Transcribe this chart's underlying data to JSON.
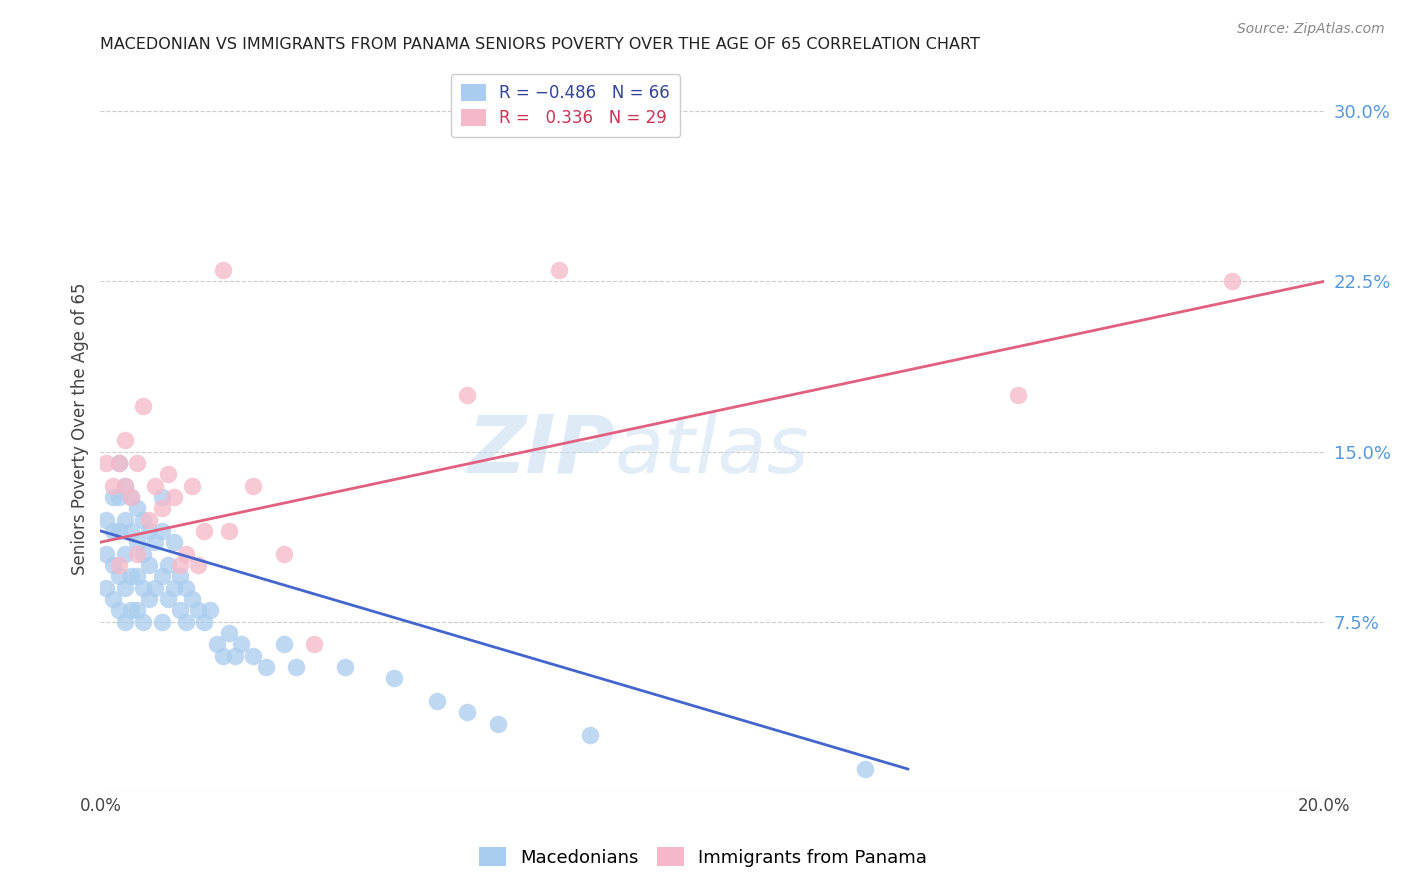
{
  "title": "MACEDONIAN VS IMMIGRANTS FROM PANAMA SENIORS POVERTY OVER THE AGE OF 65 CORRELATION CHART",
  "source": "Source: ZipAtlas.com",
  "ylabel": "Seniors Poverty Over the Age of 65",
  "xlim": [
    0.0,
    0.2
  ],
  "ylim": [
    0.0,
    0.32
  ],
  "yticks": [
    0.0,
    0.075,
    0.15,
    0.225,
    0.3
  ],
  "ytick_labels": [
    "",
    "7.5%",
    "15.0%",
    "22.5%",
    "30.0%"
  ],
  "xticks": [
    0.0,
    0.04,
    0.08,
    0.12,
    0.16,
    0.2
  ],
  "xtick_labels": [
    "0.0%",
    "",
    "",
    "",
    "",
    "20.0%"
  ],
  "blue_R": -0.486,
  "blue_N": 66,
  "pink_R": 0.336,
  "pink_N": 29,
  "blue_color": "#aaccee",
  "pink_color": "#f5b8c8",
  "blue_line_color": "#4466cc",
  "pink_line_color": "#e06080",
  "watermark_color": "#c8ddf0",
  "legend_label_blue": "Macedonians",
  "legend_label_pink": "Immigrants from Panama",
  "blue_x": [
    0.001,
    0.001,
    0.001,
    0.002,
    0.002,
    0.002,
    0.002,
    0.003,
    0.003,
    0.003,
    0.003,
    0.003,
    0.004,
    0.004,
    0.004,
    0.004,
    0.004,
    0.005,
    0.005,
    0.005,
    0.005,
    0.006,
    0.006,
    0.006,
    0.006,
    0.007,
    0.007,
    0.007,
    0.007,
    0.008,
    0.008,
    0.008,
    0.009,
    0.009,
    0.01,
    0.01,
    0.01,
    0.01,
    0.011,
    0.011,
    0.012,
    0.012,
    0.013,
    0.013,
    0.014,
    0.014,
    0.015,
    0.016,
    0.017,
    0.018,
    0.019,
    0.02,
    0.021,
    0.022,
    0.023,
    0.025,
    0.027,
    0.03,
    0.032,
    0.04,
    0.048,
    0.055,
    0.06,
    0.065,
    0.08,
    0.125
  ],
  "blue_y": [
    0.12,
    0.105,
    0.09,
    0.13,
    0.115,
    0.1,
    0.085,
    0.145,
    0.13,
    0.115,
    0.095,
    0.08,
    0.135,
    0.12,
    0.105,
    0.09,
    0.075,
    0.13,
    0.115,
    0.095,
    0.08,
    0.125,
    0.11,
    0.095,
    0.08,
    0.12,
    0.105,
    0.09,
    0.075,
    0.115,
    0.1,
    0.085,
    0.11,
    0.09,
    0.13,
    0.115,
    0.095,
    0.075,
    0.1,
    0.085,
    0.11,
    0.09,
    0.095,
    0.08,
    0.09,
    0.075,
    0.085,
    0.08,
    0.075,
    0.08,
    0.065,
    0.06,
    0.07,
    0.06,
    0.065,
    0.06,
    0.055,
    0.065,
    0.055,
    0.055,
    0.05,
    0.04,
    0.035,
    0.03,
    0.025,
    0.01
  ],
  "pink_x": [
    0.001,
    0.002,
    0.003,
    0.003,
    0.004,
    0.004,
    0.005,
    0.006,
    0.006,
    0.007,
    0.008,
    0.009,
    0.01,
    0.011,
    0.012,
    0.013,
    0.014,
    0.015,
    0.016,
    0.017,
    0.02,
    0.021,
    0.025,
    0.03,
    0.035,
    0.06,
    0.075,
    0.15,
    0.185
  ],
  "pink_y": [
    0.145,
    0.135,
    0.145,
    0.1,
    0.135,
    0.155,
    0.13,
    0.145,
    0.105,
    0.17,
    0.12,
    0.135,
    0.125,
    0.14,
    0.13,
    0.1,
    0.105,
    0.135,
    0.1,
    0.115,
    0.23,
    0.115,
    0.135,
    0.105,
    0.065,
    0.175,
    0.23,
    0.175,
    0.225
  ],
  "blue_line_x": [
    0.0,
    0.132
  ],
  "blue_line_y": [
    0.115,
    0.01
  ],
  "pink_line_x": [
    0.0,
    0.2
  ],
  "pink_line_y": [
    0.11,
    0.225
  ]
}
